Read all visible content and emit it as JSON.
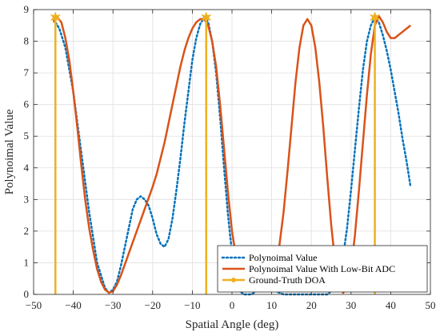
{
  "chart_data": {
    "type": "line",
    "xlabel": "Spatial Angle (deg)",
    "ylabel": "Polynoimal Value",
    "xlim": [
      -50,
      50
    ],
    "ylim": [
      0,
      9
    ],
    "xticks": [
      -50,
      -40,
      -30,
      -20,
      -10,
      0,
      10,
      20,
      30,
      40,
      50
    ],
    "yticks": [
      0,
      1,
      2,
      3,
      4,
      5,
      6,
      7,
      8,
      9
    ],
    "grid": true,
    "legend_position": "bottom-right",
    "series": [
      {
        "name": "Polynoimal Value",
        "style": "dotted",
        "color": "#0072BD",
        "x": [
          -45,
          -43.5,
          -42,
          -40,
          -38,
          -36,
          -34,
          -32,
          -31,
          -30,
          -29,
          -28,
          -27,
          -26,
          -25,
          -24,
          -23,
          -22,
          -21,
          -20,
          -19,
          -18,
          -17,
          -16,
          -15,
          -14,
          -13,
          -12,
          -11,
          -10,
          -9,
          -8,
          -7,
          -6.5,
          -6,
          -5,
          -4,
          -3,
          -2,
          -1,
          0,
          1,
          2,
          3,
          4,
          5,
          6,
          7,
          8,
          9,
          10,
          11,
          12,
          13,
          14,
          15,
          16,
          17,
          18,
          19,
          20,
          21,
          22,
          23,
          24,
          25,
          26,
          27,
          28,
          29,
          30,
          31,
          32,
          33,
          34,
          35,
          36,
          37,
          38,
          39,
          40,
          41,
          42,
          43,
          44,
          45
        ],
        "y": [
          8.7,
          8.4,
          7.8,
          6.4,
          4.5,
          2.6,
          1.0,
          0.2,
          0.05,
          0.15,
          0.4,
          0.9,
          1.5,
          2.1,
          2.7,
          3.0,
          3.1,
          3.0,
          2.8,
          2.4,
          1.9,
          1.6,
          1.5,
          1.75,
          2.4,
          3.3,
          4.3,
          5.4,
          6.4,
          7.4,
          8.1,
          8.55,
          8.75,
          8.7,
          8.6,
          8.0,
          7.0,
          5.6,
          4.0,
          2.5,
          1.3,
          0.5,
          0.1,
          0.0,
          0.0,
          0.0,
          0.1,
          0.15,
          0.2,
          0.2,
          0.15,
          0.1,
          0.05,
          0.0,
          0.0,
          0.0,
          0.0,
          0.0,
          0.0,
          0.0,
          0.0,
          0.0,
          0.0,
          0.0,
          0.0,
          0.1,
          0.3,
          0.6,
          1.2,
          2.1,
          3.3,
          4.6,
          5.9,
          7.1,
          8.0,
          8.5,
          8.75,
          8.6,
          8.2,
          7.7,
          7.1,
          6.4,
          5.7,
          4.9,
          4.2,
          3.4
        ]
      },
      {
        "name": "Polynoimal Value With Low-Bit ADC",
        "style": "solid",
        "color": "#D95319",
        "x": [
          -45,
          -44,
          -43,
          -42,
          -41,
          -40,
          -39,
          -38,
          -37,
          -36,
          -35,
          -34,
          -33,
          -32,
          -31,
          -30,
          -29,
          -28,
          -27,
          -26,
          -25,
          -24,
          -23,
          -22,
          -21,
          -20,
          -19,
          -18,
          -17,
          -16,
          -15,
          -14,
          -13,
          -12,
          -11,
          -10,
          -9,
          -8,
          -7,
          -6,
          -5,
          -4,
          -3,
          -2,
          -1,
          0,
          1,
          2,
          3,
          4,
          5,
          6,
          7,
          8,
          9,
          10,
          11,
          12,
          13,
          14,
          15,
          16,
          17,
          18,
          19,
          20,
          21,
          22,
          23,
          24,
          25,
          26,
          27,
          28,
          29,
          30,
          31,
          32,
          33,
          34,
          35,
          36,
          37,
          38,
          39,
          40,
          41,
          42,
          43,
          44,
          45
        ],
        "y": [
          8.6,
          8.75,
          8.6,
          8.1,
          7.4,
          6.4,
          5.3,
          4.1,
          3.0,
          2.1,
          1.4,
          0.8,
          0.4,
          0.15,
          0.05,
          0.1,
          0.3,
          0.6,
          0.95,
          1.3,
          1.65,
          2.0,
          2.35,
          2.7,
          3.05,
          3.4,
          3.8,
          4.3,
          4.8,
          5.4,
          6.0,
          6.6,
          7.2,
          7.7,
          8.1,
          8.4,
          8.6,
          8.7,
          8.7,
          8.5,
          8.0,
          7.2,
          6.0,
          4.6,
          3.2,
          2.0,
          1.2,
          0.7,
          0.4,
          0.25,
          0.2,
          0.25,
          0.35,
          0.45,
          0.5,
          0.6,
          0.9,
          1.6,
          2.6,
          3.9,
          5.3,
          6.7,
          7.8,
          8.5,
          8.7,
          8.5,
          7.8,
          6.7,
          5.3,
          3.7,
          2.2,
          1.0,
          0.3,
          0.05,
          0.2,
          0.8,
          1.9,
          3.3,
          4.8,
          6.3,
          7.6,
          8.5,
          8.8,
          8.6,
          8.3,
          8.1,
          8.1,
          8.2,
          8.3,
          8.4,
          8.5
        ]
      },
      {
        "name": "Ground-Truth DOA",
        "style": "stem",
        "color": "#EDB120",
        "x": [
          -44.5,
          -6.5,
          36
        ],
        "y": [
          8.75,
          8.75,
          8.75
        ]
      }
    ]
  }
}
